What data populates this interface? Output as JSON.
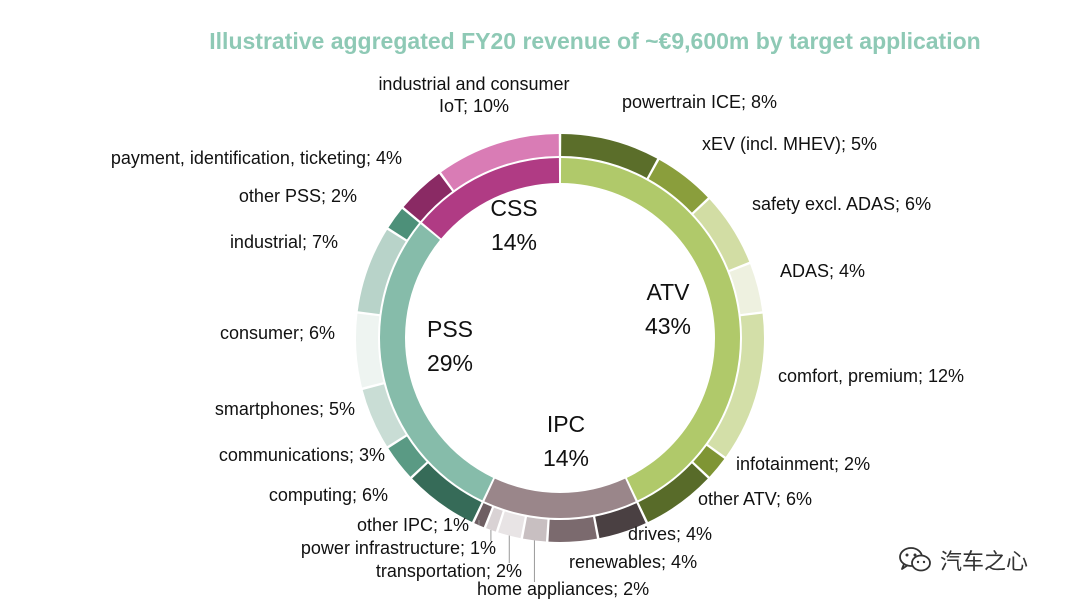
{
  "title": "Illustrative aggregated FY20 revenue of ~€9,600m by target application",
  "colors": {
    "title": "#8ec9b5"
  },
  "watermark": {
    "text": "汽车之心",
    "icon": "wechat-icon"
  },
  "chart_data": {
    "type": "pie",
    "subtype": "nested-donut",
    "title": "Illustrative aggregated FY20 revenue of ~€9,600m by target application",
    "unit": "%",
    "categories": [
      {
        "name": "ATV",
        "value": 43,
        "color": "#b0c96a"
      },
      {
        "name": "IPC",
        "value": 14,
        "color": "#9a868a"
      },
      {
        "name": "PSS",
        "value": 29,
        "color": "#86bcaa"
      },
      {
        "name": "CSS",
        "value": 14,
        "color": "#b03b84"
      }
    ],
    "segments": [
      {
        "label": "powertrain ICE; 8%",
        "value": 8,
        "category": "ATV",
        "color": "#5b6e2a"
      },
      {
        "label": "xEV (incl. MHEV); 5%",
        "value": 5,
        "category": "ATV",
        "color": "#8a9e3c"
      },
      {
        "label": "safety excl. ADAS; 6%",
        "value": 6,
        "category": "ATV",
        "color": "#d2dda4"
      },
      {
        "label": "ADAS; 4%",
        "value": 4,
        "category": "ATV",
        "color": "#eef1e0"
      },
      {
        "label": "comfort, premium; 12%",
        "value": 12,
        "category": "ATV",
        "color": "#d3dfa8"
      },
      {
        "label": "infotainment; 2%",
        "value": 2,
        "category": "ATV",
        "color": "#7f9534"
      },
      {
        "label": "other ATV; 6%",
        "value": 6,
        "category": "ATV",
        "color": "#586b29"
      },
      {
        "label": "drives; 4%",
        "value": 4,
        "category": "IPC",
        "color": "#4a4042"
      },
      {
        "label": "renewables; 4%",
        "value": 4,
        "category": "IPC",
        "color": "#7b6a6e"
      },
      {
        "label": "home appliances; 2%",
        "value": 2,
        "category": "IPC",
        "color": "#c8bfc1"
      },
      {
        "label": "transportation; 2%",
        "value": 2,
        "category": "IPC",
        "color": "#e8e4e5"
      },
      {
        "label": "power infrastructure; 1%",
        "value": 1,
        "category": "IPC",
        "color": "#d9d2d4"
      },
      {
        "label": "other IPC; 1%",
        "value": 1,
        "category": "IPC",
        "color": "#6e5e62"
      },
      {
        "label": "computing; 6%",
        "value": 6,
        "category": "PSS",
        "color": "#366b58"
      },
      {
        "label": "communications; 3%",
        "value": 3,
        "category": "PSS",
        "color": "#5a9a84"
      },
      {
        "label": "smartphones; 5%",
        "value": 5,
        "category": "PSS",
        "color": "#c9ddd5"
      },
      {
        "label": "consumer; 6%",
        "value": 6,
        "category": "PSS",
        "color": "#eef4f1"
      },
      {
        "label": "industrial; 7%",
        "value": 7,
        "category": "PSS",
        "color": "#b8d3c9"
      },
      {
        "label": "other PSS; 2%",
        "value": 2,
        "category": "PSS",
        "color": "#4d9079"
      },
      {
        "label": "payment, identification, ticketing; 4%",
        "value": 4,
        "category": "CSS",
        "color": "#8a2a64"
      },
      {
        "label": "industrial and consumer IoT; 10%",
        "value": 10,
        "category": "CSS",
        "color": "#d97cb5"
      }
    ]
  }
}
